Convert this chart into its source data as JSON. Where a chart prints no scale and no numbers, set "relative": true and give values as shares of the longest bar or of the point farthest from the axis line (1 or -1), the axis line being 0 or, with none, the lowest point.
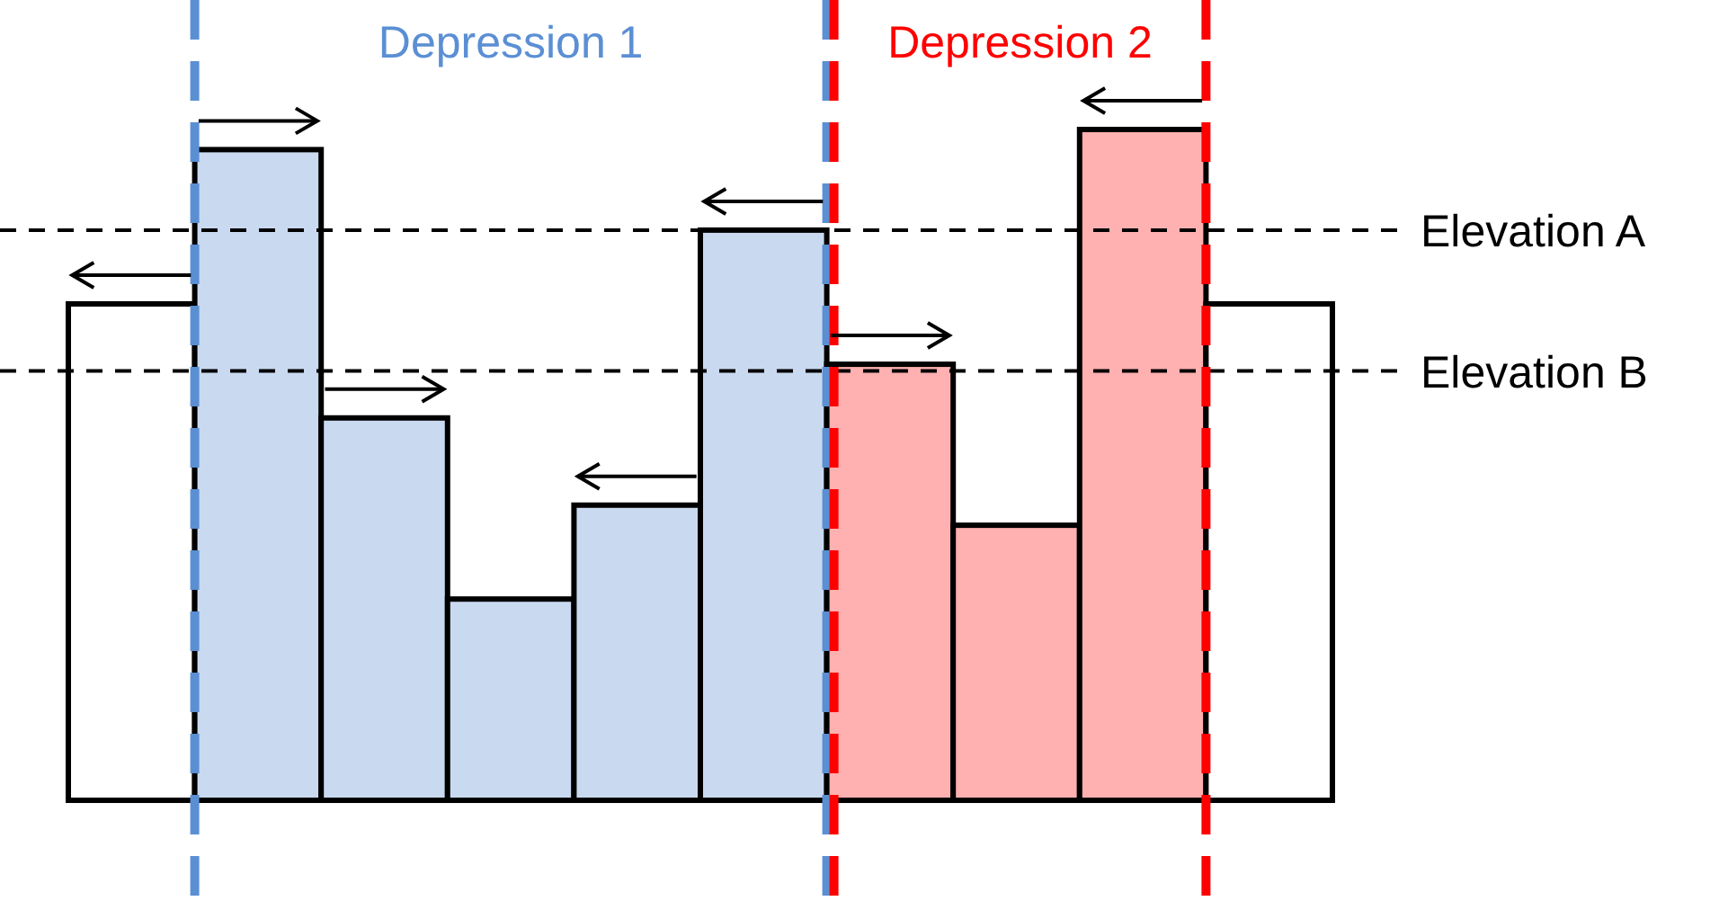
{
  "chart_data": {
    "type": "bar",
    "relative": true,
    "categories": [
      null,
      null,
      null,
      null,
      null,
      null,
      null,
      null,
      null,
      null
    ],
    "values": [
      0.74,
      0.97,
      0.57,
      0.3,
      0.44,
      0.85,
      0.65,
      0.41,
      1,
      0.74
    ],
    "colors": [
      "#ffffff",
      "#c9d9ef",
      "#c9d9ef",
      "#c9d9ef",
      "#c9d9ef",
      "#c9d9ef",
      "#ffb0b0",
      "#ffb0b0",
      "#ffb0b0",
      "#ffffff"
    ],
    "ref_lines": [
      {
        "axis": "y",
        "value": 0.85,
        "label": "Elevation A",
        "color": "#000000",
        "line_style": "dashed"
      },
      {
        "axis": "y",
        "value": 0.64,
        "label": "Elevation B",
        "color": "#000000",
        "line_style": "dashed"
      }
    ],
    "annotations": [
      "Depression 1",
      "Depression 2"
    ]
  }
}
